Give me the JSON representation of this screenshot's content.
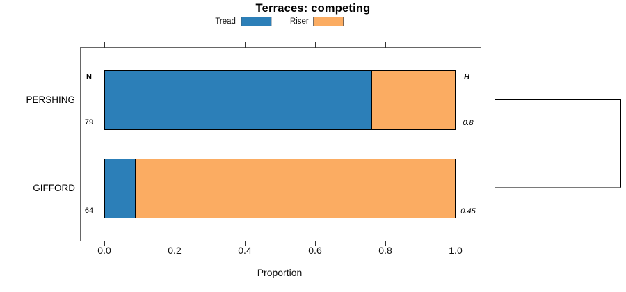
{
  "chart_data": {
    "type": "bar",
    "orientation": "horizontal",
    "stacked": true,
    "title": "Terraces: competing",
    "xlabel": "Proportion",
    "xlim": [
      0,
      1
    ],
    "grid": false,
    "legend_position": "top-center",
    "xticks": {
      "values": [
        0.0,
        0.2,
        0.4,
        0.6,
        0.8,
        1.0
      ],
      "labels": [
        "0.0",
        "0.2",
        "0.4",
        "0.6",
        "0.8",
        "1.0"
      ]
    },
    "categories": [
      "PERSHING",
      "GIFFORD"
    ],
    "series": [
      {
        "name": "Tread",
        "color": "#2C7FB8",
        "values": [
          0.76,
          0.09
        ]
      },
      {
        "name": "Riser",
        "color": "#FBAC62",
        "values": [
          0.24,
          0.91
        ]
      }
    ],
    "annotations": {
      "n_header": "N",
      "n_values": [
        "79",
        "64"
      ],
      "h_header": "H",
      "h_values": [
        "0.8",
        "0.45"
      ],
      "right_bracket_joins": [
        "PERSHING",
        "GIFFORD"
      ]
    },
    "colors": {
      "tread": "#2C7FB8",
      "riser": "#FBAC62",
      "bar_border": "#000000",
      "box_border": "#666666"
    }
  }
}
